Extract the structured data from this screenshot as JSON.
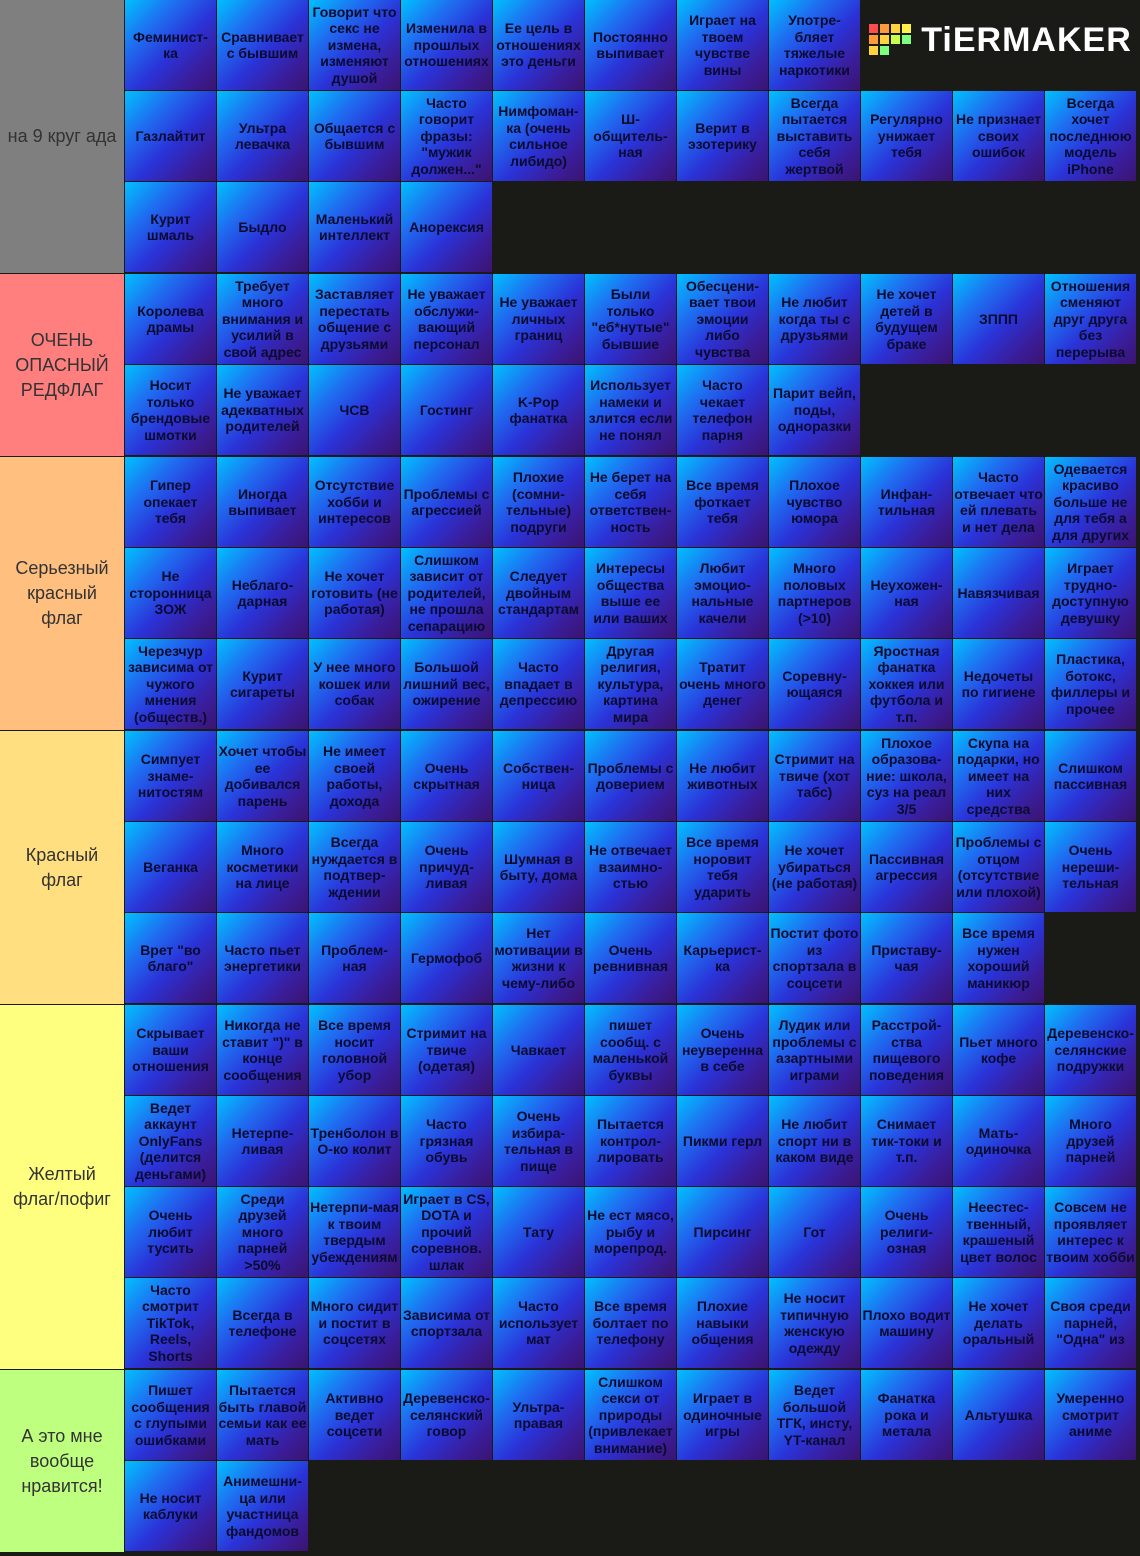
{
  "logo": "TiERMAKER",
  "tiers": [
    {
      "label": "на 9 круг ада",
      "color": "#7f7f7f",
      "rows": [
        [
          "Феминист-ка",
          "Сравнивает с бывшим",
          "Говорит что секс не измена, изменяют душой",
          "Изменила в прошлых отношениях",
          "Ее цель в отношениях это деньги",
          "Постоянно выпивает",
          "Играет на твоем чувстве вины",
          "Употре-бляет тяжелые наркотики"
        ],
        [
          "Газлайтит",
          "Ультра левачка",
          "Общается с бывшим",
          "Часто говорит фразы: \"мужик должен...\"",
          "Нимфоман-ка (очень сильное либидо)",
          "Ш-общитель-ная",
          "Верит в эзотерику",
          "Всегда пытается выставить себя жертвой",
          "Регулярно унижает тебя",
          "Не признает своих ошибок",
          "Всегда хочет последнюю модель iPhone"
        ],
        [
          "Курит шмаль",
          "Быдло",
          "Маленький интеллект",
          "Анорексия"
        ]
      ]
    },
    {
      "label": "ОЧЕНЬ ОПАСНЫЙ РЕДФЛАГ",
      "color": "#ff7f7f",
      "rows": [
        [
          "Королева драмы",
          "Требует много внимания и усилий в свой адрес",
          "Заставляет перестать общение с друзьями",
          "Не уважает обслужи-вающий персонал",
          "Не уважает личных границ",
          "Были только \"еб*нутые\" бывшие",
          "Обесцени-вает твои эмоции либо чувства",
          "Не любит когда ты с друзьями",
          "Не хочет детей в будущем браке",
          "ЗППП",
          "Отношения сменяют друг друга без перерыва"
        ],
        [
          "Носит только брендовые шмотки",
          "Не уважает адекватных родителей",
          "ЧСВ",
          "Гостинг",
          "K-Pop фанатка",
          "Использует намеки и злится если не понял",
          "Часто чекает телефон парня",
          "Парит вейп, поды, одноразки"
        ]
      ]
    },
    {
      "label": "Серьезный красный флаг",
      "color": "#ffbf7f",
      "rows": [
        [
          "Гипер опекает тебя",
          "Иногда выпивает",
          "Отсутствие хобби и интересов",
          "Проблемы с агрессией",
          "Плохие (сомни-тельные) подруги",
          "Не берет на себя ответствен-ность",
          "Все время фоткает тебя",
          "Плохое чувство юмора",
          "Инфан-тильная",
          "Часто отвечает что ей плевать и нет дела",
          "Одевается красиво больше не для тебя а для других"
        ],
        [
          "Не сторонница ЗОЖ",
          "Неблаго-дарная",
          "Не хочет готовить (не работая)",
          "Слишком зависит от родителей, не прошла сепарацию",
          "Следует двойным стандартам",
          "Интересы общества выше ее или ваших",
          "Любит эмоцио-нальные качели",
          "Много половых партнеров (>10)",
          "Неухожен-ная",
          "Навязчивая",
          "Играет трудно-доступную девушку"
        ],
        [
          "Черезчур зависима от чужого мнения (обществ.)",
          "Курит сигареты",
          "У нее много кошек или собак",
          "Большой лишний вес, ожирение",
          "Часто впадает в депрессию",
          "Другая религия, культура, картина мира",
          "Тратит очень много денег",
          "Соревну-ющаяся",
          "Яростная фанатка хоккея или футбола и т.п.",
          "Недочеты по гигиене",
          "Пластика, ботокс, филлеры и прочее"
        ]
      ]
    },
    {
      "label": "Красный флаг",
      "color": "#ffdf7f",
      "rows": [
        [
          "Симпует знаме-нитостям",
          "Хочет чтобы ее добивался парень",
          "Не имеет своей работы, дохода",
          "Очень скрытная",
          "Собствен-ница",
          "Проблемы с доверием",
          "Не любит животных",
          "Стримит на твиче (хот табс)",
          "Плохое образова-ние: школа, суз на реал 3/5",
          "Скупа на подарки, но имеет на них средства",
          "Слишком пассивная"
        ],
        [
          "Веганка",
          "Много косметики на лице",
          "Всегда нуждается в подтвер-ждении",
          "Очень причуд-ливая",
          "Шумная в быту, дома",
          "Не отвечает взаимно-стью",
          "Все время норовит тебя ударить",
          "Не хочет убираться (не работая)",
          "Пассивная агрессия",
          "Проблемы с отцом (отсутствие или плохой)",
          "Очень нереши-тельная"
        ],
        [
          "Врет \"во благо\"",
          "Часто пьет энергетики",
          "Проблем-ная",
          "Гермофоб",
          "Нет мотивации в жизни к чему-либо",
          "Очень ревнивная",
          "Карьерист-ка",
          "Постит фото из спортзала в соцсети",
          "Приставу-чая",
          "Все время нужен хороший маникюр"
        ]
      ]
    },
    {
      "label": "Желтый флаг/пофиг",
      "color": "#ffff7f",
      "rows": [
        [
          "Скрывает ваши отношения",
          "Никогда не ставит \")\" в конце сообщения",
          "Все время носит головной убор",
          "Стримит на твиче (одетая)",
          "Чавкает",
          "пишет сообщ. с маленькой буквы",
          "Очень неуверенна в себе",
          "Лудик или проблемы с азартными играми",
          "Расстрой-ства пищевого поведения",
          "Пьет много кофе",
          "Деревенско-селянские подружки"
        ],
        [
          "Ведет аккаунт OnlyFans (делится деньгами)",
          "Нетерпе-ливая",
          "Тренболон в О-ко колит",
          "Часто грязная обувь",
          "Очень избира-тельная в пище",
          "Пытается контрол-лировать",
          "Пикми герл",
          "Не любит спорт ни в каком виде",
          "Снимает тик-токи и т.п.",
          "Мать-одиночка",
          "Много друзей парней"
        ],
        [
          "Очень любит тусить",
          "Среди друзей много парней >50%",
          "Нетерпи-мая к твоим твердым убеждениям",
          "Играет в CS, DOTA и прочий соревнов. шлак",
          "Тату",
          "Не ест мясо, рыбу и морепрод.",
          "Пирсинг",
          "Гот",
          "Очень религи-озная",
          "Неестес-твенный, крашеный цвет волос",
          "Совсем не проявляет интерес к твоим хобби"
        ],
        [
          "Часто смотрит TikTok, Reels, Shorts",
          "Всегда в телефоне",
          "Много сидит и постит в соцсетях",
          "Зависима от спортзала",
          "Часто использует мат",
          "Все время болтает по телефону",
          "Плохие навыки общения",
          "Не носит типичную женскую одежду",
          "Плохо водит машину",
          "Не хочет делать оральный",
          "Своя среди парней, \"Одна\" из"
        ]
      ]
    },
    {
      "label": "А это мне вообще нравится!",
      "color": "#bfff7f",
      "rows": [
        [
          "Пишет сообщения с глупыми ошибками",
          "Пытается быть главой семьи как ее мать",
          "Активно ведет соцсети",
          "Деревенско-селянский говор",
          "Ультра-правая",
          "Слишком секси от природы (привлекает внимание)",
          "Играет в одиночные игры",
          "Ведет большой ТГК, инсту, YT-канал",
          "Фанатка рока и метала",
          "Альтушка",
          "Умеренно смотрит аниме"
        ],
        [
          "Не носит каблуки",
          "Анимешни-ца или участница фандомов"
        ]
      ]
    }
  ]
}
